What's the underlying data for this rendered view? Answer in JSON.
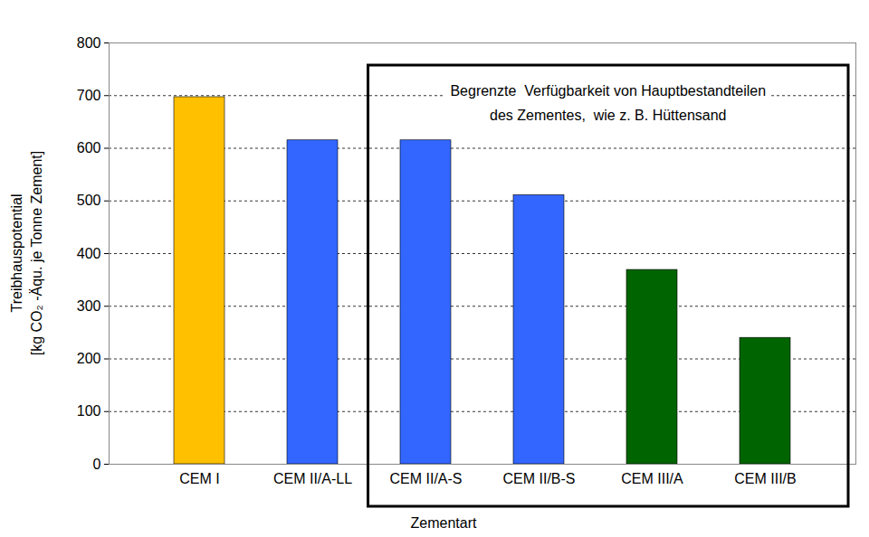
{
  "chart_data": {
    "type": "bar",
    "x_label": "Zementart",
    "y_label": "Treibhauspotential\n[kg CO₂ -Äqu. je Tonne Zement]",
    "annotation": "Begrenzte  Verfügbarkeit von Hauptbestandteilen\ndes Zementes,  wie z. B. Hüttensand",
    "categories": [
      "CEM I",
      "CEM II/A-LL",
      "CEM II/A-S",
      "CEM II/B-S",
      "CEM III/A",
      "CEM III/B"
    ],
    "values": [
      697,
      615,
      615,
      511,
      369,
      240
    ],
    "colors": [
      "#FFC000",
      "#3366FF",
      "#3366FF",
      "#3366FF",
      "#006400",
      "#006400"
    ],
    "ylim": [
      0,
      800
    ],
    "yticks": [
      0,
      100,
      200,
      300,
      400,
      500,
      600,
      700,
      800
    ],
    "grid": true,
    "data_labels": false
  }
}
